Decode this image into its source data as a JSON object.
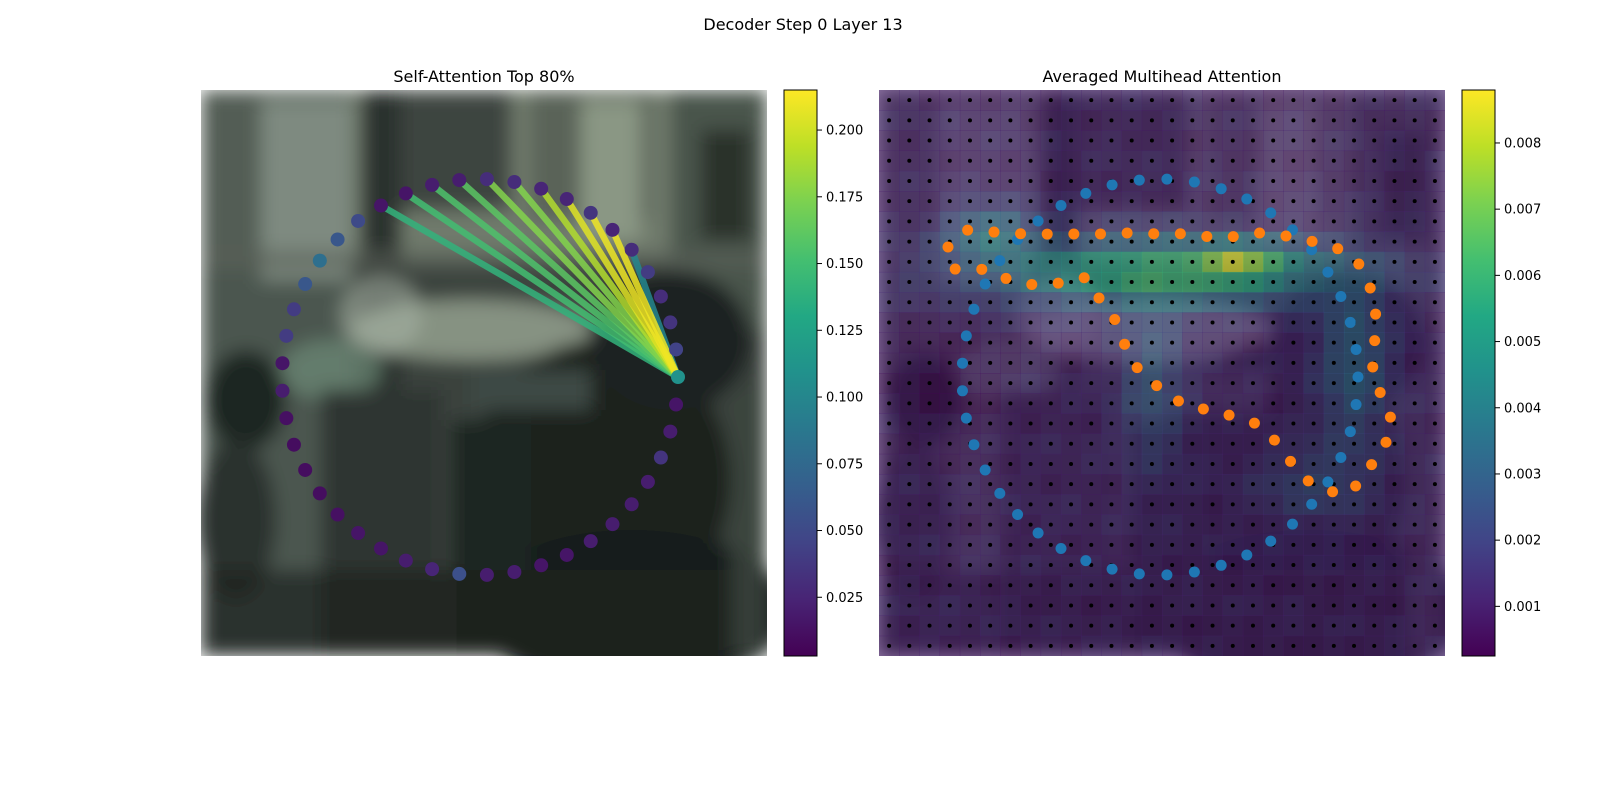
{
  "figure": {
    "title": "Decoder Step 0 Layer 13"
  },
  "chart_data": [
    {
      "type": "scatter",
      "title": "Self-Attention Top 80%",
      "xlabel": "",
      "ylabel": "",
      "background": "blurred camera image (office scene, dark foreground)",
      "colormap": "viridis",
      "colorbar": {
        "ticks": [
          "0.025",
          "0.050",
          "0.075",
          "0.100",
          "0.125",
          "0.150",
          "0.175",
          "0.200"
        ],
        "range": [
          0.003,
          0.215
        ]
      },
      "query_point_index": 0,
      "points_note": "45 polygon vertices, index 0 = query vertex at right, counter-clockwise order",
      "point_attention": [
        0.11,
        0.045,
        0.035,
        0.03,
        0.04,
        0.03,
        0.025,
        0.035,
        0.025,
        0.025,
        0.03,
        0.03,
        0.02,
        0.02,
        0.015,
        0.015,
        0.05,
        0.06,
        0.08,
        0.06,
        0.04,
        0.04,
        0.015,
        0.02,
        0.012,
        0.01,
        0.01,
        0.01,
        0.012,
        0.015,
        0.015,
        0.02,
        0.025,
        0.055,
        0.02,
        0.02,
        0.015,
        0.015,
        0.02,
        0.02,
        0.02,
        0.02,
        0.035,
        0.02,
        0.015
      ],
      "edges_from_query": [
        {
          "to": 5,
          "weight": 0.1
        },
        {
          "to": 6,
          "weight": 0.21
        },
        {
          "to": 7,
          "weight": 0.21
        },
        {
          "to": 8,
          "weight": 0.205
        },
        {
          "to": 9,
          "weight": 0.19
        },
        {
          "to": 10,
          "weight": 0.175
        },
        {
          "to": 11,
          "weight": 0.175
        },
        {
          "to": 12,
          "weight": 0.16
        },
        {
          "to": 13,
          "weight": 0.155
        },
        {
          "to": 14,
          "weight": 0.15
        },
        {
          "to": 15,
          "weight": 0.14
        }
      ]
    },
    {
      "type": "heatmap",
      "title": "Averaged Multihead Attention",
      "xlabel": "",
      "ylabel": "",
      "colormap": "viridis",
      "colorbar": {
        "ticks": [
          "0.001",
          "0.002",
          "0.003",
          "0.004",
          "0.005",
          "0.006",
          "0.007",
          "0.008"
        ],
        "range": [
          0.00025,
          0.0088
        ]
      },
      "grid_size": [
        28,
        28
      ],
      "grid_points": "black dots at every cell center",
      "hotspot": {
        "row": 8,
        "col": 17,
        "value": 0.0085
      },
      "series": [
        {
          "color": "#1f77b4",
          "points_note": "reference polygon, 45 points"
        },
        {
          "color": "#ff7f0e",
          "points_note": "sampling points, 45 points"
        }
      ]
    }
  ]
}
